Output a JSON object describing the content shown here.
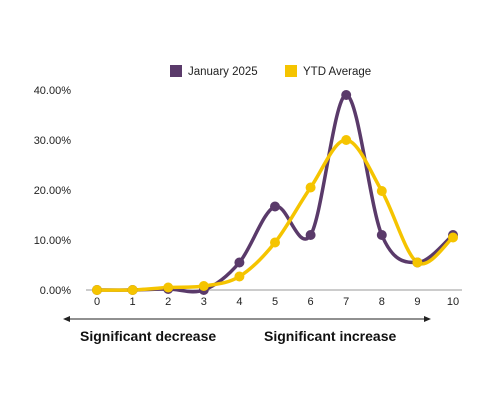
{
  "chart_data": {
    "type": "line",
    "x": [
      0,
      1,
      2,
      3,
      4,
      5,
      6,
      7,
      8,
      9,
      10
    ],
    "xticks": [
      "0",
      "1",
      "2",
      "3",
      "4",
      "5",
      "6",
      "7",
      "8",
      "9",
      "10"
    ],
    "yticks": [
      "0.00%",
      "10.00%",
      "20.00%",
      "30.00%",
      "40.00%"
    ],
    "ylim": [
      0,
      40
    ],
    "xlim": [
      0,
      10
    ],
    "grid": false,
    "legend_position": "top",
    "series": [
      {
        "name": "January 2025",
        "color": "#5a3a6a",
        "values": [
          0,
          0,
          0.2,
          0,
          5.5,
          16.7,
          11,
          39,
          11,
          5.5,
          11
        ]
      },
      {
        "name": "YTD Average",
        "color": "#f5c400",
        "values": [
          0,
          0,
          0.5,
          0.8,
          2.7,
          9.5,
          20.5,
          30,
          19.8,
          5.5,
          10.5
        ]
      }
    ],
    "annotations": {
      "left": "Significant decrease",
      "right": "Significant increase"
    }
  }
}
